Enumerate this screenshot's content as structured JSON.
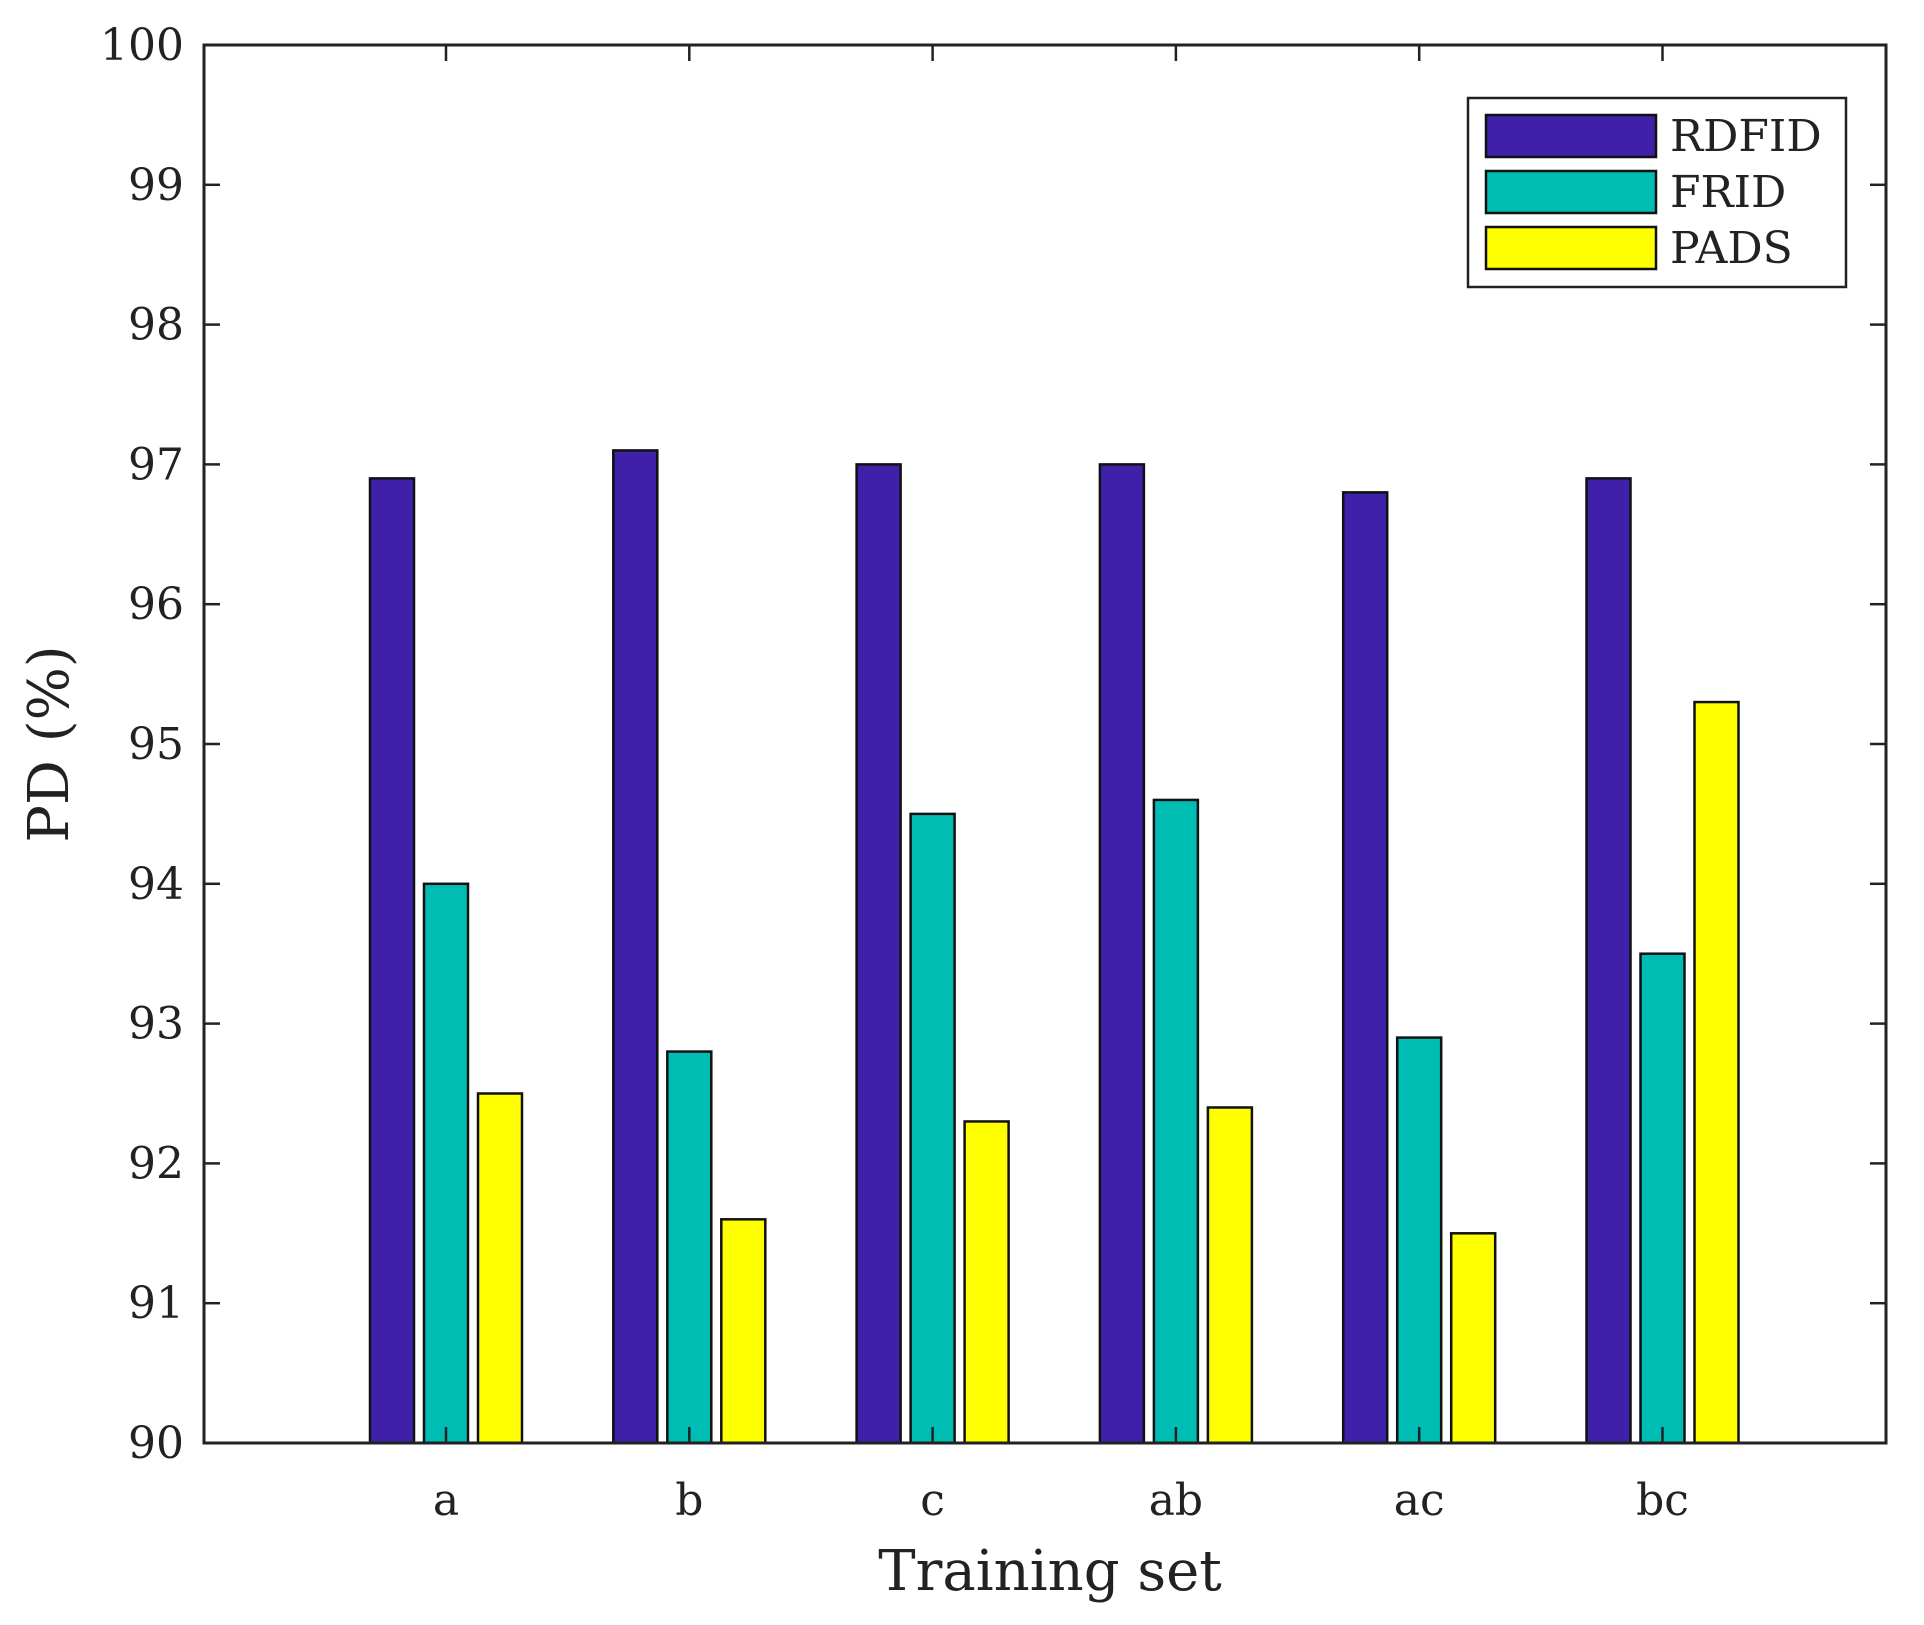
{
  "chart_data": {
    "type": "bar",
    "xlabel": "Training set",
    "ylabel": "PD (%)",
    "ylim": [
      90,
      100
    ],
    "yticks": [
      "90",
      "91",
      "92",
      "93",
      "94",
      "95",
      "96",
      "97",
      "98",
      "99",
      "100"
    ],
    "categories": [
      "a",
      "b",
      "c",
      "ab",
      "ac",
      "bc"
    ],
    "series": [
      {
        "name": "RDFID",
        "color": "#3f20a8",
        "values": [
          96.9,
          97.1,
          97.0,
          97.0,
          96.8,
          96.9
        ]
      },
      {
        "name": "FRID",
        "color": "#00bdb4",
        "values": [
          94.0,
          92.8,
          94.5,
          94.6,
          92.9,
          93.5
        ]
      },
      {
        "name": "PADS",
        "color": "#ffff00",
        "values": [
          92.5,
          91.6,
          92.3,
          92.4,
          91.5,
          95.3
        ]
      }
    ],
    "grid": false,
    "legend": "top-right"
  }
}
